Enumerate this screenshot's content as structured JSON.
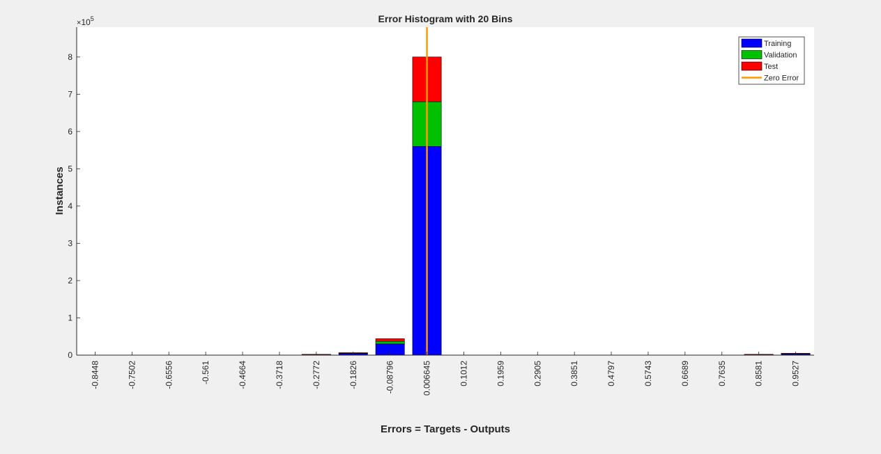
{
  "chart_data": {
    "type": "bar",
    "title": "Error Histogram with 20 Bins",
    "xlabel": "Errors = Targets - Outputs",
    "ylabel": "Instances",
    "y_exponent_label": "10",
    "y_exponent_power": "5",
    "y_multiplier": 100000,
    "ylim": [
      0,
      880000
    ],
    "yticks": [
      0,
      1,
      2,
      3,
      4,
      5,
      6,
      7,
      8
    ],
    "categories": [
      "-0.8448",
      "-0.7502",
      "-0.6556",
      "-0.561",
      "-0.4664",
      "-0.3718",
      "-0.2772",
      "-0.1826",
      "-0.08796",
      "0.006645",
      "0.1012",
      "0.1959",
      "0.2905",
      "0.3851",
      "0.4797",
      "0.5743",
      "0.6689",
      "0.7635",
      "0.8581",
      "0.9527"
    ],
    "series": [
      {
        "name": "Training",
        "color": "#0000ff",
        "values": [
          0,
          0,
          0,
          0,
          0,
          0,
          1500,
          4500,
          30000,
          560000,
          0,
          0,
          0,
          0,
          0,
          0,
          0,
          0,
          1500,
          3500
        ]
      },
      {
        "name": "Validation",
        "color": "#00c000",
        "values": [
          0,
          0,
          0,
          0,
          0,
          0,
          300,
          1000,
          7000,
          120000,
          0,
          0,
          0,
          0,
          0,
          0,
          0,
          0,
          300,
          700
        ]
      },
      {
        "name": "Test",
        "color": "#ff0000",
        "values": [
          0,
          0,
          0,
          0,
          0,
          0,
          300,
          1000,
          7000,
          120000,
          0,
          0,
          0,
          0,
          0,
          0,
          0,
          0,
          300,
          700
        ]
      }
    ],
    "zero_error": {
      "name": "Zero Error",
      "color": "#ff9900",
      "category_index": 9
    },
    "legend_position": "top-right",
    "grid": false
  }
}
